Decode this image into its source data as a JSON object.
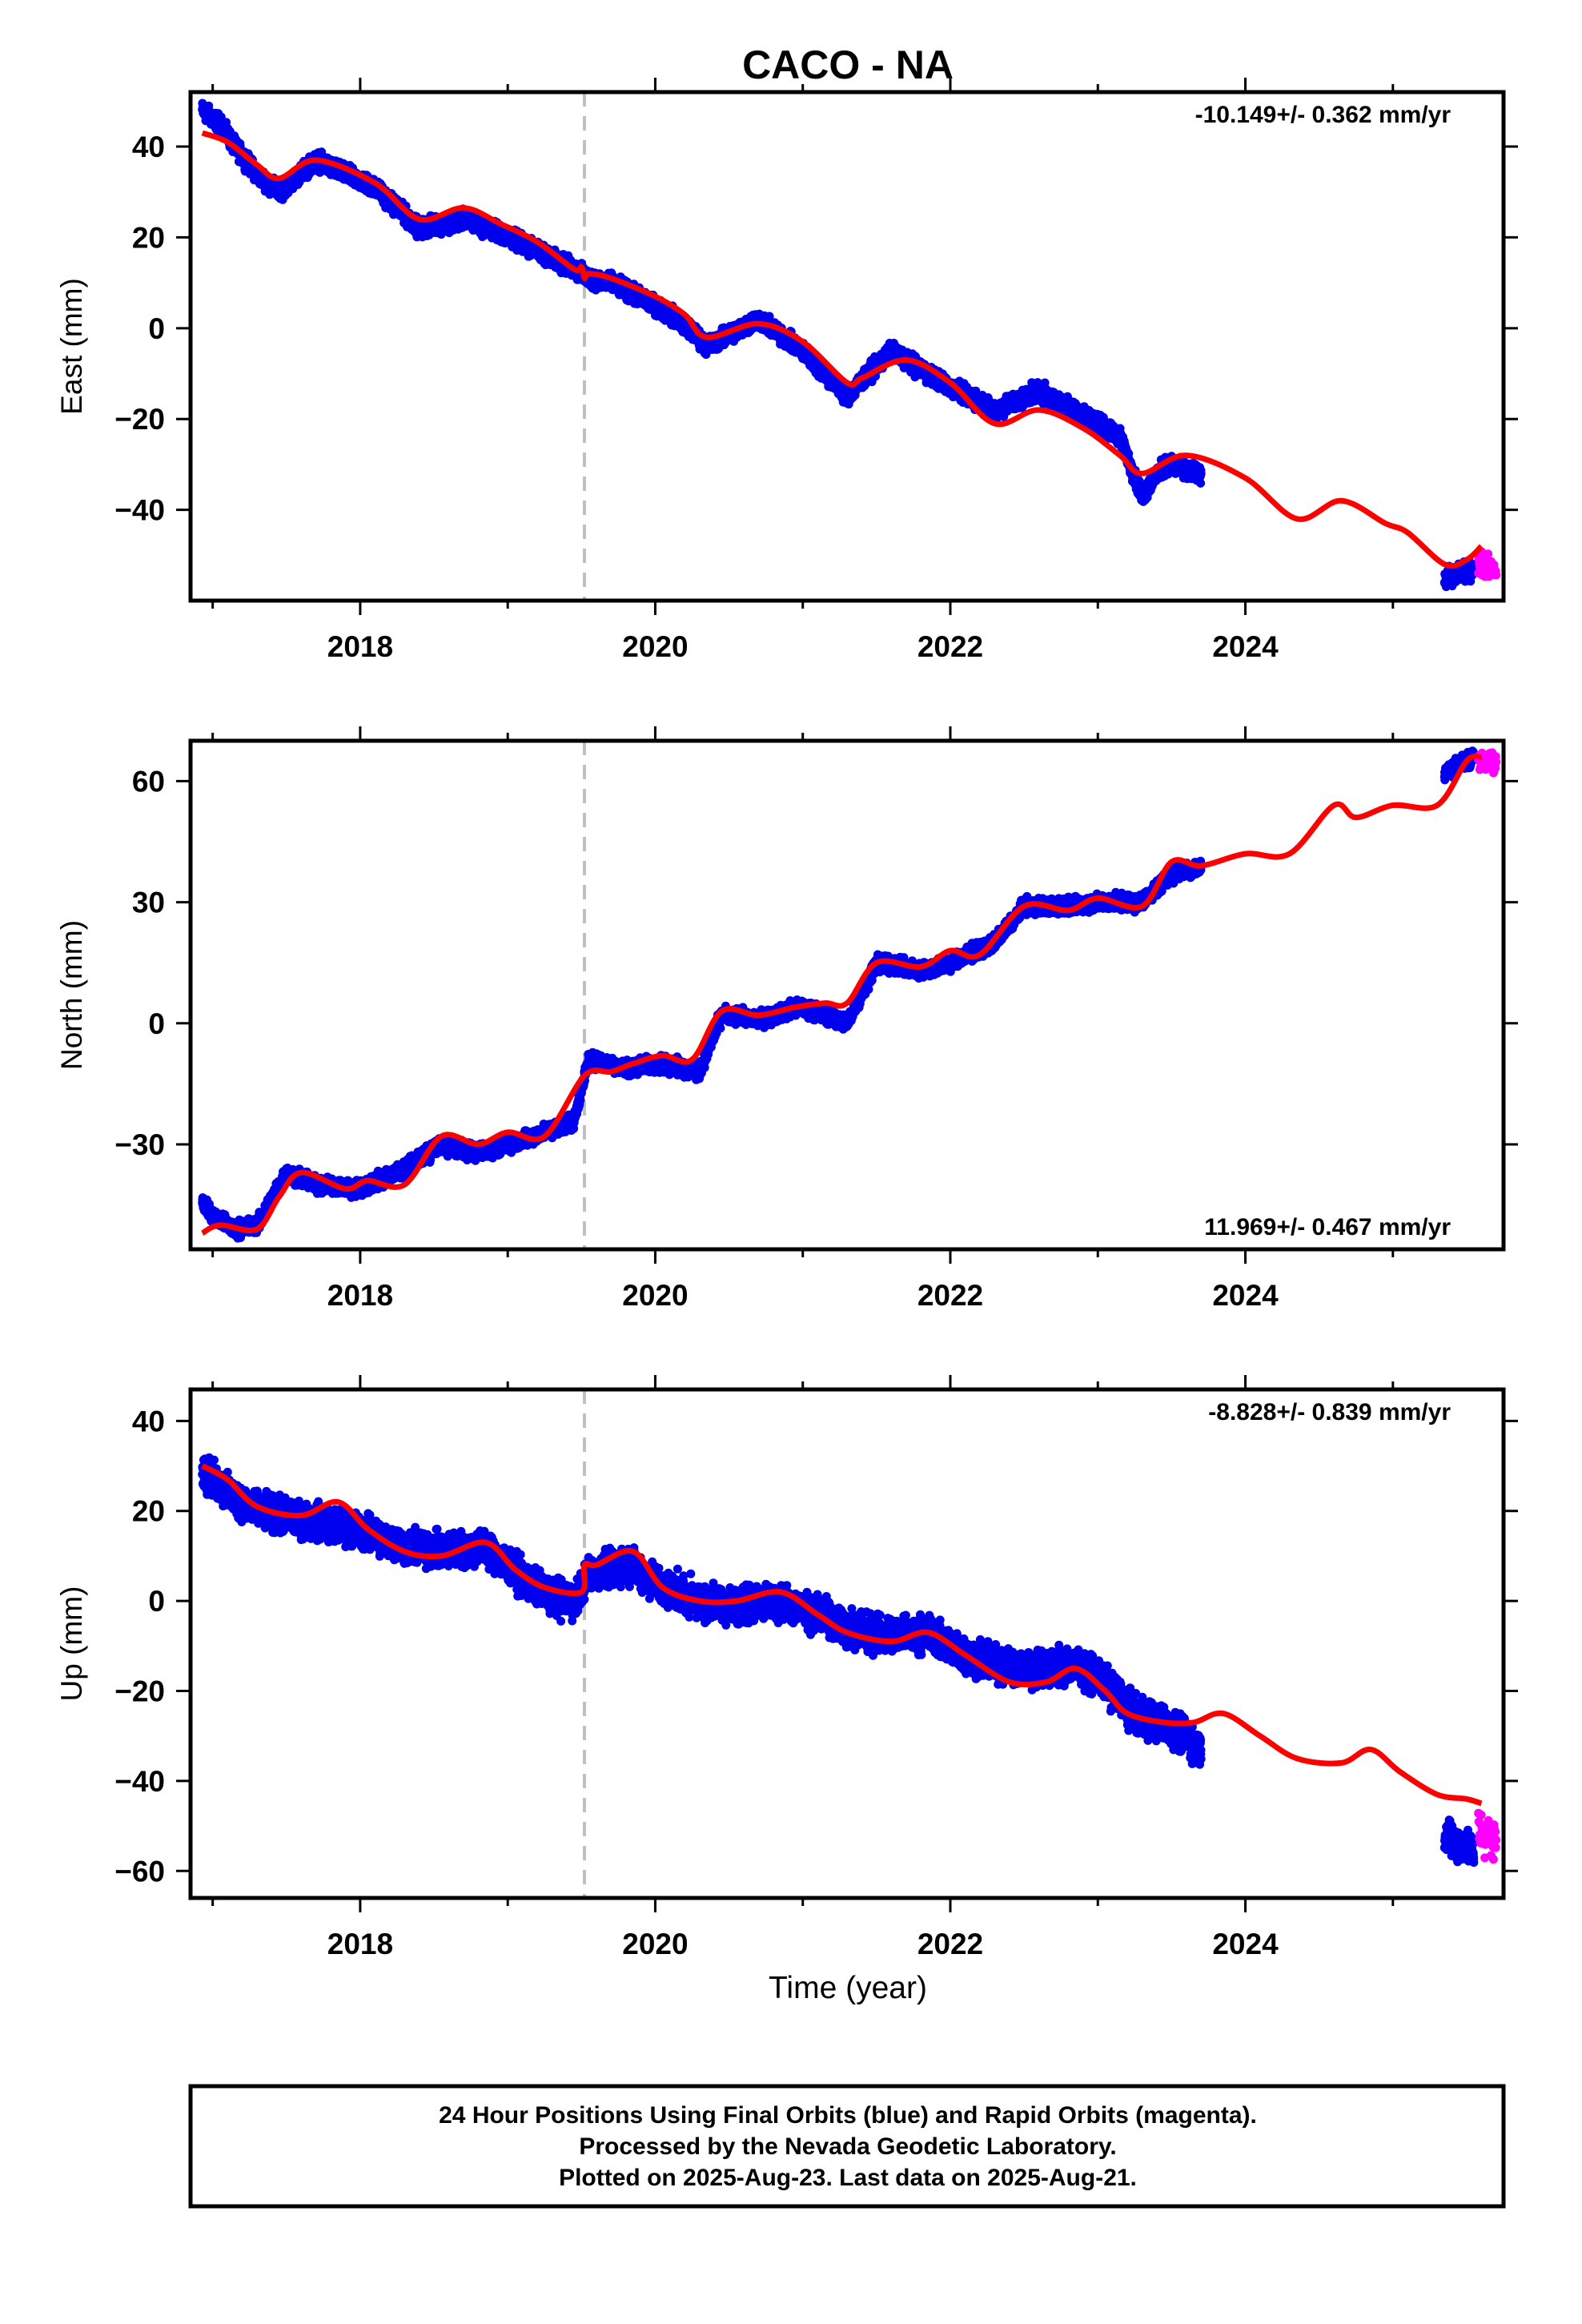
{
  "title": "CACO - NA",
  "xlabel": "Time (year)",
  "x_tick_labels": [
    "2018",
    "2020",
    "2022",
    "2024"
  ],
  "footer": [
    "24 Hour Positions Using Final Orbits (blue) and Rapid Orbits (magenta).",
    "Processed by the Nevada Geodetic Laboratory.",
    "Plotted on 2025-Aug-23. Last data on 2025-Aug-21."
  ],
  "colors": {
    "final_orbits": "#0000ee",
    "rapid_orbits": "#ff00ff",
    "model_fit": "#ff0000",
    "equipment_change_line": "#c0c0c0"
  },
  "chart_data": [
    {
      "type": "scatter",
      "component": "east",
      "ylabel": "East (mm)",
      "rate_label": "-10.149+/- 0.362 mm/yr",
      "xlim": [
        2016.85,
        2025.75
      ],
      "ylim": [
        -60,
        52
      ],
      "y_ticks": [
        40,
        20,
        0,
        -20,
        -40
      ],
      "y_tick_labels": [
        "40",
        "20",
        "0",
        "−20",
        "−40"
      ],
      "equipment_change_x": 2019.52,
      "fit": {
        "x": [
          2016.93,
          2017.1,
          2017.3,
          2017.45,
          2017.7,
          2018.1,
          2018.4,
          2018.7,
          2018.95,
          2019.2,
          2019.45,
          2019.5,
          2019.52,
          2019.55,
          2019.7,
          2020.0,
          2020.2,
          2020.35,
          2020.7,
          2021.0,
          2021.3,
          2021.4,
          2021.7,
          2022.0,
          2022.3,
          2022.6,
          2022.9,
          2023.15,
          2023.3,
          2023.6,
          2024.0,
          2024.35,
          2024.65,
          2024.95,
          2025.1,
          2025.35,
          2025.5,
          2025.6
        ],
        "y": [
          43,
          41,
          36,
          33,
          37,
          32,
          24,
          26.5,
          23,
          19,
          13,
          13.5,
          11,
          12,
          11,
          7,
          3,
          -2,
          1,
          -3,
          -12,
          -11,
          -7,
          -12,
          -21,
          -18,
          -22,
          -28,
          -32,
          -28,
          -33,
          -42,
          -38,
          -43,
          -45,
          -52,
          -51,
          -48
        ]
      },
      "final_orbit_segments": [
        {
          "x": [
            2016.93,
            2017.05,
            2017.15,
            2017.3,
            2017.45,
            2017.7,
            2018.1,
            2018.4,
            2018.7,
            2018.95,
            2019.2,
            2019.45,
            2019.55,
            2019.7,
            2020.0,
            2020.2,
            2020.35,
            2020.7,
            2021.0,
            2021.3,
            2021.6,
            2021.7,
            2022.0,
            2022.3,
            2022.6,
            2022.9,
            2023.15,
            2023.3,
            2023.45,
            2023.7
          ],
          "y": [
            48,
            45,
            40,
            34,
            30,
            37,
            31,
            22,
            24,
            21,
            17,
            13,
            11,
            10,
            5,
            1,
            -4,
            2,
            -5,
            -15,
            -5,
            -7,
            -13,
            -18,
            -14,
            -19,
            -24,
            -37,
            -30,
            -32
          ]
        },
        {
          "x": [
            2025.35,
            2025.45,
            2025.55
          ],
          "y": [
            -55,
            -54,
            -53
          ]
        }
      ],
      "rapid_orbit_segment": {
        "x": [
          2025.58,
          2025.7
        ],
        "y": [
          -52,
          -53
        ]
      }
    },
    {
      "type": "scatter",
      "component": "north",
      "ylabel": "North (mm)",
      "rate_label": "11.969+/- 0.467 mm/yr",
      "xlim": [
        2016.85,
        2025.75
      ],
      "ylim": [
        -56,
        70
      ],
      "y_ticks": [
        60,
        30,
        0,
        -30
      ],
      "y_tick_labels": [
        "60",
        "30",
        "0",
        "−30"
      ],
      "equipment_change_x": 2019.52,
      "fit": {
        "x": [
          2016.93,
          2017.05,
          2017.3,
          2017.45,
          2017.6,
          2017.9,
          2018.05,
          2018.3,
          2018.55,
          2018.8,
          2019.0,
          2019.25,
          2019.52,
          2019.7,
          2019.85,
          2020.05,
          2020.25,
          2020.45,
          2020.7,
          2020.95,
          2021.15,
          2021.3,
          2021.5,
          2021.8,
          2022.0,
          2022.2,
          2022.5,
          2022.8,
          2023.0,
          2023.3,
          2023.5,
          2023.7,
          2024.0,
          2024.3,
          2024.6,
          2024.75,
          2025.0,
          2025.3,
          2025.5,
          2025.6
        ],
        "y": [
          -52,
          -50,
          -51,
          -43,
          -37,
          -41,
          -39,
          -40,
          -28,
          -30,
          -27,
          -28,
          -13,
          -12,
          -10,
          -8,
          -9,
          3,
          2,
          4,
          5,
          5,
          15,
          14,
          18,
          17,
          29,
          28,
          31,
          29,
          40,
          39,
          42,
          42,
          54,
          51,
          54,
          54,
          65,
          66
        ]
      },
      "final_orbit_segments": [
        {
          "x": [
            2016.93,
            2017.0,
            2017.15,
            2017.3,
            2017.5,
            2017.7,
            2018.0,
            2018.3,
            2018.55,
            2018.8,
            2019.0,
            2019.25,
            2019.45,
            2019.55,
            2019.8,
            2020.05,
            2020.3,
            2020.45,
            2020.7,
            2021.0,
            2021.3,
            2021.5,
            2021.8,
            2022.0,
            2022.3,
            2022.5,
            2022.8,
            2023.0,
            2023.3,
            2023.5,
            2023.7
          ],
          "y": [
            -44,
            -48,
            -51,
            -50,
            -37,
            -40,
            -41,
            -36,
            -30,
            -32,
            -30,
            -27,
            -24,
            -9,
            -11,
            -10,
            -12,
            2,
            1,
            4,
            0,
            15,
            13,
            15,
            20,
            29,
            29,
            30,
            30,
            37,
            39
          ]
        },
        {
          "x": [
            2025.35,
            2025.45,
            2025.55
          ],
          "y": [
            62,
            64,
            66
          ]
        }
      ],
      "rapid_orbit_segment": {
        "x": [
          2025.58,
          2025.7
        ],
        "y": [
          65,
          64
        ]
      }
    },
    {
      "type": "scatter",
      "component": "up",
      "ylabel": "Up (mm)",
      "rate_label": "-8.828+/- 0.839 mm/yr",
      "xlim": [
        2016.85,
        2025.75
      ],
      "ylim": [
        -66,
        47
      ],
      "y_ticks": [
        40,
        20,
        0,
        -20,
        -40,
        -60
      ],
      "y_tick_labels": [
        "40",
        "20",
        "0",
        "−20",
        "−40",
        "−60"
      ],
      "equipment_change_x": 2019.52,
      "fit": {
        "x": [
          2016.93,
          2017.1,
          2017.3,
          2017.6,
          2017.85,
          2018.05,
          2018.3,
          2018.55,
          2018.85,
          2019.05,
          2019.25,
          2019.5,
          2019.52,
          2019.6,
          2019.85,
          2020.05,
          2020.3,
          2020.55,
          2020.85,
          2021.1,
          2021.3,
          2021.6,
          2021.85,
          2022.1,
          2022.4,
          2022.65,
          2022.85,
          2023.05,
          2023.2,
          2023.45,
          2023.65,
          2023.85,
          2024.1,
          2024.35,
          2024.65,
          2024.85,
          2025.05,
          2025.3,
          2025.5,
          2025.6
        ],
        "y": [
          30,
          27,
          21,
          19,
          22,
          16,
          11,
          10,
          13,
          7,
          3,
          2,
          8,
          8,
          11,
          3,
          0,
          0,
          2,
          -3,
          -7,
          -9,
          -7,
          -12,
          -18,
          -18,
          -15,
          -20,
          -25,
          -27,
          -27,
          -25,
          -30,
          -35,
          -36,
          -33,
          -38,
          -43,
          -44,
          -45
        ]
      },
      "final_orbit_segments": [
        {
          "x": [
            2016.93,
            2017.1,
            2017.3,
            2017.6,
            2017.85,
            2018.05,
            2018.3,
            2018.55,
            2018.85,
            2019.1,
            2019.3,
            2019.45,
            2019.55,
            2019.85,
            2020.05,
            2020.3,
            2020.55,
            2020.85,
            2021.1,
            2021.3,
            2021.6,
            2021.85,
            2022.1,
            2022.4,
            2022.65,
            2022.85,
            2023.05,
            2023.25,
            2023.5,
            2023.7
          ],
          "y": [
            29,
            24,
            20,
            18,
            17,
            15,
            12,
            11,
            12,
            5,
            1,
            0,
            6,
            8,
            3,
            0,
            -1,
            0,
            -3,
            -6,
            -8,
            -7,
            -12,
            -15,
            -15,
            -14,
            -18,
            -25,
            -28,
            -33
          ]
        },
        {
          "x": [
            2025.35,
            2025.45,
            2025.55
          ],
          "y": [
            -52,
            -54,
            -56
          ]
        }
      ],
      "rapid_orbit_segment": {
        "x": [
          2025.58,
          2025.7
        ],
        "y": [
          -50,
          -54
        ]
      }
    }
  ]
}
